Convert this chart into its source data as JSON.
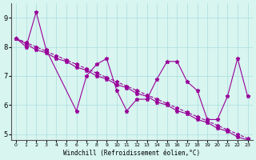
{
  "x": [
    0,
    1,
    2,
    3,
    4,
    5,
    6,
    7,
    8,
    9,
    10,
    11,
    12,
    13,
    14,
    15,
    16,
    17,
    18,
    19,
    20,
    21,
    22,
    23
  ],
  "line1": [
    8.3,
    8.0,
    9.2,
    7.9,
    null,
    null,
    5.8,
    7.0,
    7.4,
    7.6,
    6.5,
    5.8,
    6.2,
    6.2,
    6.9,
    7.5,
    7.5,
    6.8,
    6.5,
    5.5,
    5.5,
    6.3,
    7.6,
    6.3
  ],
  "line2_trend1": [
    8.3,
    8.1,
    7.9,
    7.8,
    7.6,
    7.5,
    7.3,
    7.2,
    7.0,
    6.9,
    6.7,
    6.6,
    6.4,
    6.3,
    6.1,
    6.0,
    5.8,
    5.7,
    5.5,
    5.4,
    5.2,
    5.1,
    4.9,
    4.8
  ],
  "line2_trend2": [
    8.3,
    8.15,
    8.0,
    7.85,
    7.7,
    7.55,
    7.4,
    7.25,
    7.1,
    6.95,
    6.8,
    6.65,
    6.5,
    6.35,
    6.2,
    6.05,
    5.9,
    5.75,
    5.6,
    5.45,
    5.3,
    5.15,
    5.0,
    4.85
  ],
  "bg_color": "#d8f5f0",
  "line_color": "#990099",
  "grid_color": "#aadddd",
  "xlabel": "Windchill (Refroidissement éolien,°C)",
  "ylabel_ticks": [
    5,
    6,
    7,
    8,
    9
  ],
  "xtick_labels": [
    "0",
    "1",
    "2",
    "3",
    "4",
    "5",
    "6",
    "7",
    "8",
    "9",
    "10",
    "11",
    "12",
    "13",
    "14",
    "15",
    "16",
    "17",
    "18",
    "19",
    "20",
    "21",
    "22",
    "23"
  ],
  "xlim": [
    -0.5,
    23.5
  ],
  "ylim": [
    4.8,
    9.5
  ]
}
